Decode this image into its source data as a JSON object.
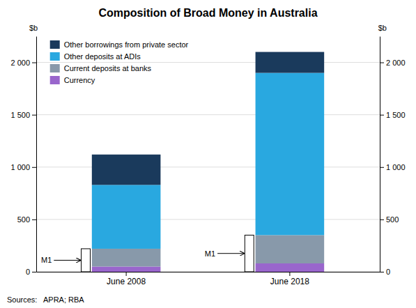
{
  "chart_data": {
    "type": "bar",
    "stacked": true,
    "title": "Composition of Broad Money in Australia",
    "ylabel": "$b",
    "source": "Sources:   APRA; RBA",
    "categories": [
      "June 2008",
      "June 2018"
    ],
    "series": [
      {
        "name": "Currency",
        "color": "#9966cc",
        "values": [
          50,
          80
        ]
      },
      {
        "name": "Current deposits at banks",
        "color": "#8899aa",
        "values": [
          170,
          270
        ]
      },
      {
        "name": "Other deposits at ADIs",
        "color": "#29a8e0",
        "values": [
          610,
          1550
        ]
      },
      {
        "name": "Other borrowings from private sector",
        "color": "#1a3a5c",
        "values": [
          290,
          200
        ]
      }
    ],
    "ylim": [
      0,
      2250
    ],
    "yticks": [
      0,
      500,
      {
        "value": 1000,
        "label": "1 000"
      },
      {
        "value": 1500,
        "label": "1 500"
      },
      {
        "value": 2000,
        "label": "2 000"
      }
    ],
    "grid": true,
    "legend": "upper left",
    "annotations": [
      {
        "text": "M1",
        "x": "June 2008",
        "value": 220
      },
      {
        "text": "M1",
        "x": "June 2018",
        "value": 350
      }
    ]
  }
}
